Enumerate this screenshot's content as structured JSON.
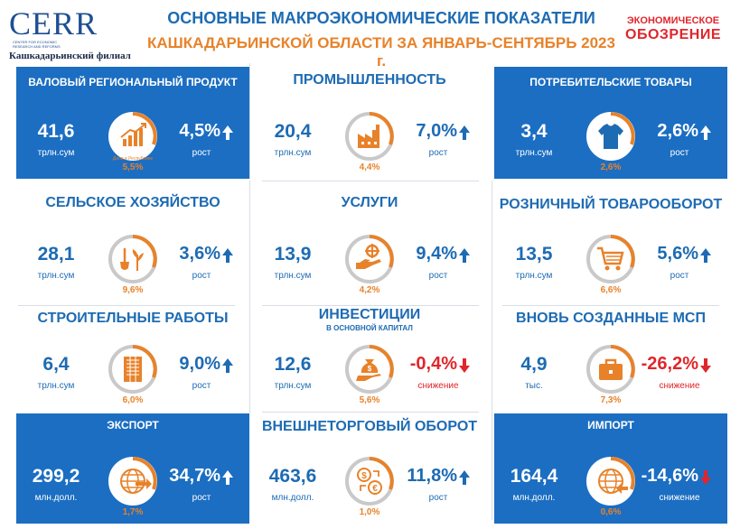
{
  "header": {
    "logo_text": "CERR",
    "logo_subtext": "CENTER FOR ECONOMIC RESEARCH AND REFORMS",
    "branch": "Кашкадарьинский филиал",
    "title_line1": "ОСНОВНЫЕ МАКРОЭКОНОМИЧЕСКИЕ ПОКАЗАТЕЛИ",
    "title_line2": "КАШКАДАРЬИНСКОЙ ОБЛАСТИ ЗА ЯНВАРЬ-СЕНТЯБРЬ 2023 г.",
    "brand_line1": "ЭКОНОМИЧЕСКОЕ",
    "brand_line2": "ОБОЗРЕНИЕ"
  },
  "colors": {
    "blue": "#1d6bb3",
    "card_blue": "#1b6ec2",
    "orange": "#e8822a",
    "red": "#e0262b"
  },
  "cards": [
    {
      "title": "ВАЛОВЫЙ РЕГИОНАЛЬНЫЙ ПРОДУКТ",
      "value": "41,6",
      "unit": "трлн.сум",
      "growth": "4,5%",
      "growth_label": "рост",
      "share": "5,5%",
      "share_note": "Доля в Республике",
      "icon": "growth-chart-icon",
      "direction": "up"
    },
    {
      "title": "ПРОМЫШЛЕННОСТЬ",
      "value": "20,4",
      "unit": "трлн.сум",
      "growth": "7,0%",
      "growth_label": "рост",
      "share": "4,4%",
      "icon": "factory-icon",
      "direction": "up"
    },
    {
      "title": "ПОТРЕБИТЕЛЬСКИЕ ТОВАРЫ",
      "value": "3,4",
      "unit": "трлн.сум",
      "growth": "2,6%",
      "growth_label": "рост",
      "share": "2,6%",
      "icon": "shirt-icon",
      "direction": "up"
    },
    {
      "title": "СЕЛЬСКОЕ ХОЗЯЙСТВО",
      "value": "28,1",
      "unit": "трлн.сум",
      "growth": "3,6%",
      "growth_label": "рост",
      "share": "9,6%",
      "icon": "shovel-plant-icon",
      "direction": "up"
    },
    {
      "title": "УСЛУГИ",
      "value": "13,9",
      "unit": "трлн.сум",
      "growth": "9,4%",
      "growth_label": "рост",
      "share": "4,2%",
      "icon": "service-hand-icon",
      "direction": "up"
    },
    {
      "title": "РОЗНИЧНЫЙ ТОВАРООБОРОТ",
      "value": "13,5",
      "unit": "трлн.сум",
      "growth": "5,6%",
      "growth_label": "рост",
      "share": "6,6%",
      "icon": "shopping-cart-icon",
      "direction": "up"
    },
    {
      "title": "СТРОИТЕЛЬНЫЕ РАБОТЫ",
      "value": "6,4",
      "unit": "трлн.сум",
      "growth": "9,0%",
      "growth_label": "рост",
      "share": "6,0%",
      "icon": "building-icon",
      "direction": "up"
    },
    {
      "title": "ИНВЕСТИЦИИ",
      "subtitle": "В ОСНОВНОЙ КАПИТАЛ",
      "value": "12,6",
      "unit": "трлн.сум",
      "growth": "-0,4%",
      "growth_label": "снижение",
      "share": "5,6%",
      "icon": "money-bag-hand-icon",
      "direction": "down"
    },
    {
      "title": "ВНОВЬ СОЗДАННЫЕ МСП",
      "value": "4,9",
      "unit": "тыс.",
      "growth": "-26,2%",
      "growth_label": "снижение",
      "share": "7,3%",
      "icon": "briefcase-icon",
      "direction": "down"
    },
    {
      "title": "ЭКСПОРТ",
      "value": "299,2",
      "unit": "млн.долл.",
      "growth": "34,7%",
      "growth_label": "рост",
      "share": "1,7%",
      "icon": "globe-export-icon",
      "direction": "up"
    },
    {
      "title": "ВНЕШНЕТОРГОВЫЙ ОБОРОТ",
      "value": "463,6",
      "unit": "млн.долл.",
      "growth": "11,8%",
      "growth_label": "рост",
      "share": "1,0%",
      "icon": "currency-exchange-icon",
      "direction": "up"
    },
    {
      "title": "ИМПОРТ",
      "value": "164,4",
      "unit": "млн.долл.",
      "growth": "-14,6%",
      "growth_label": "снижение",
      "share": "0,6%",
      "icon": "globe-import-icon",
      "direction": "down"
    }
  ]
}
